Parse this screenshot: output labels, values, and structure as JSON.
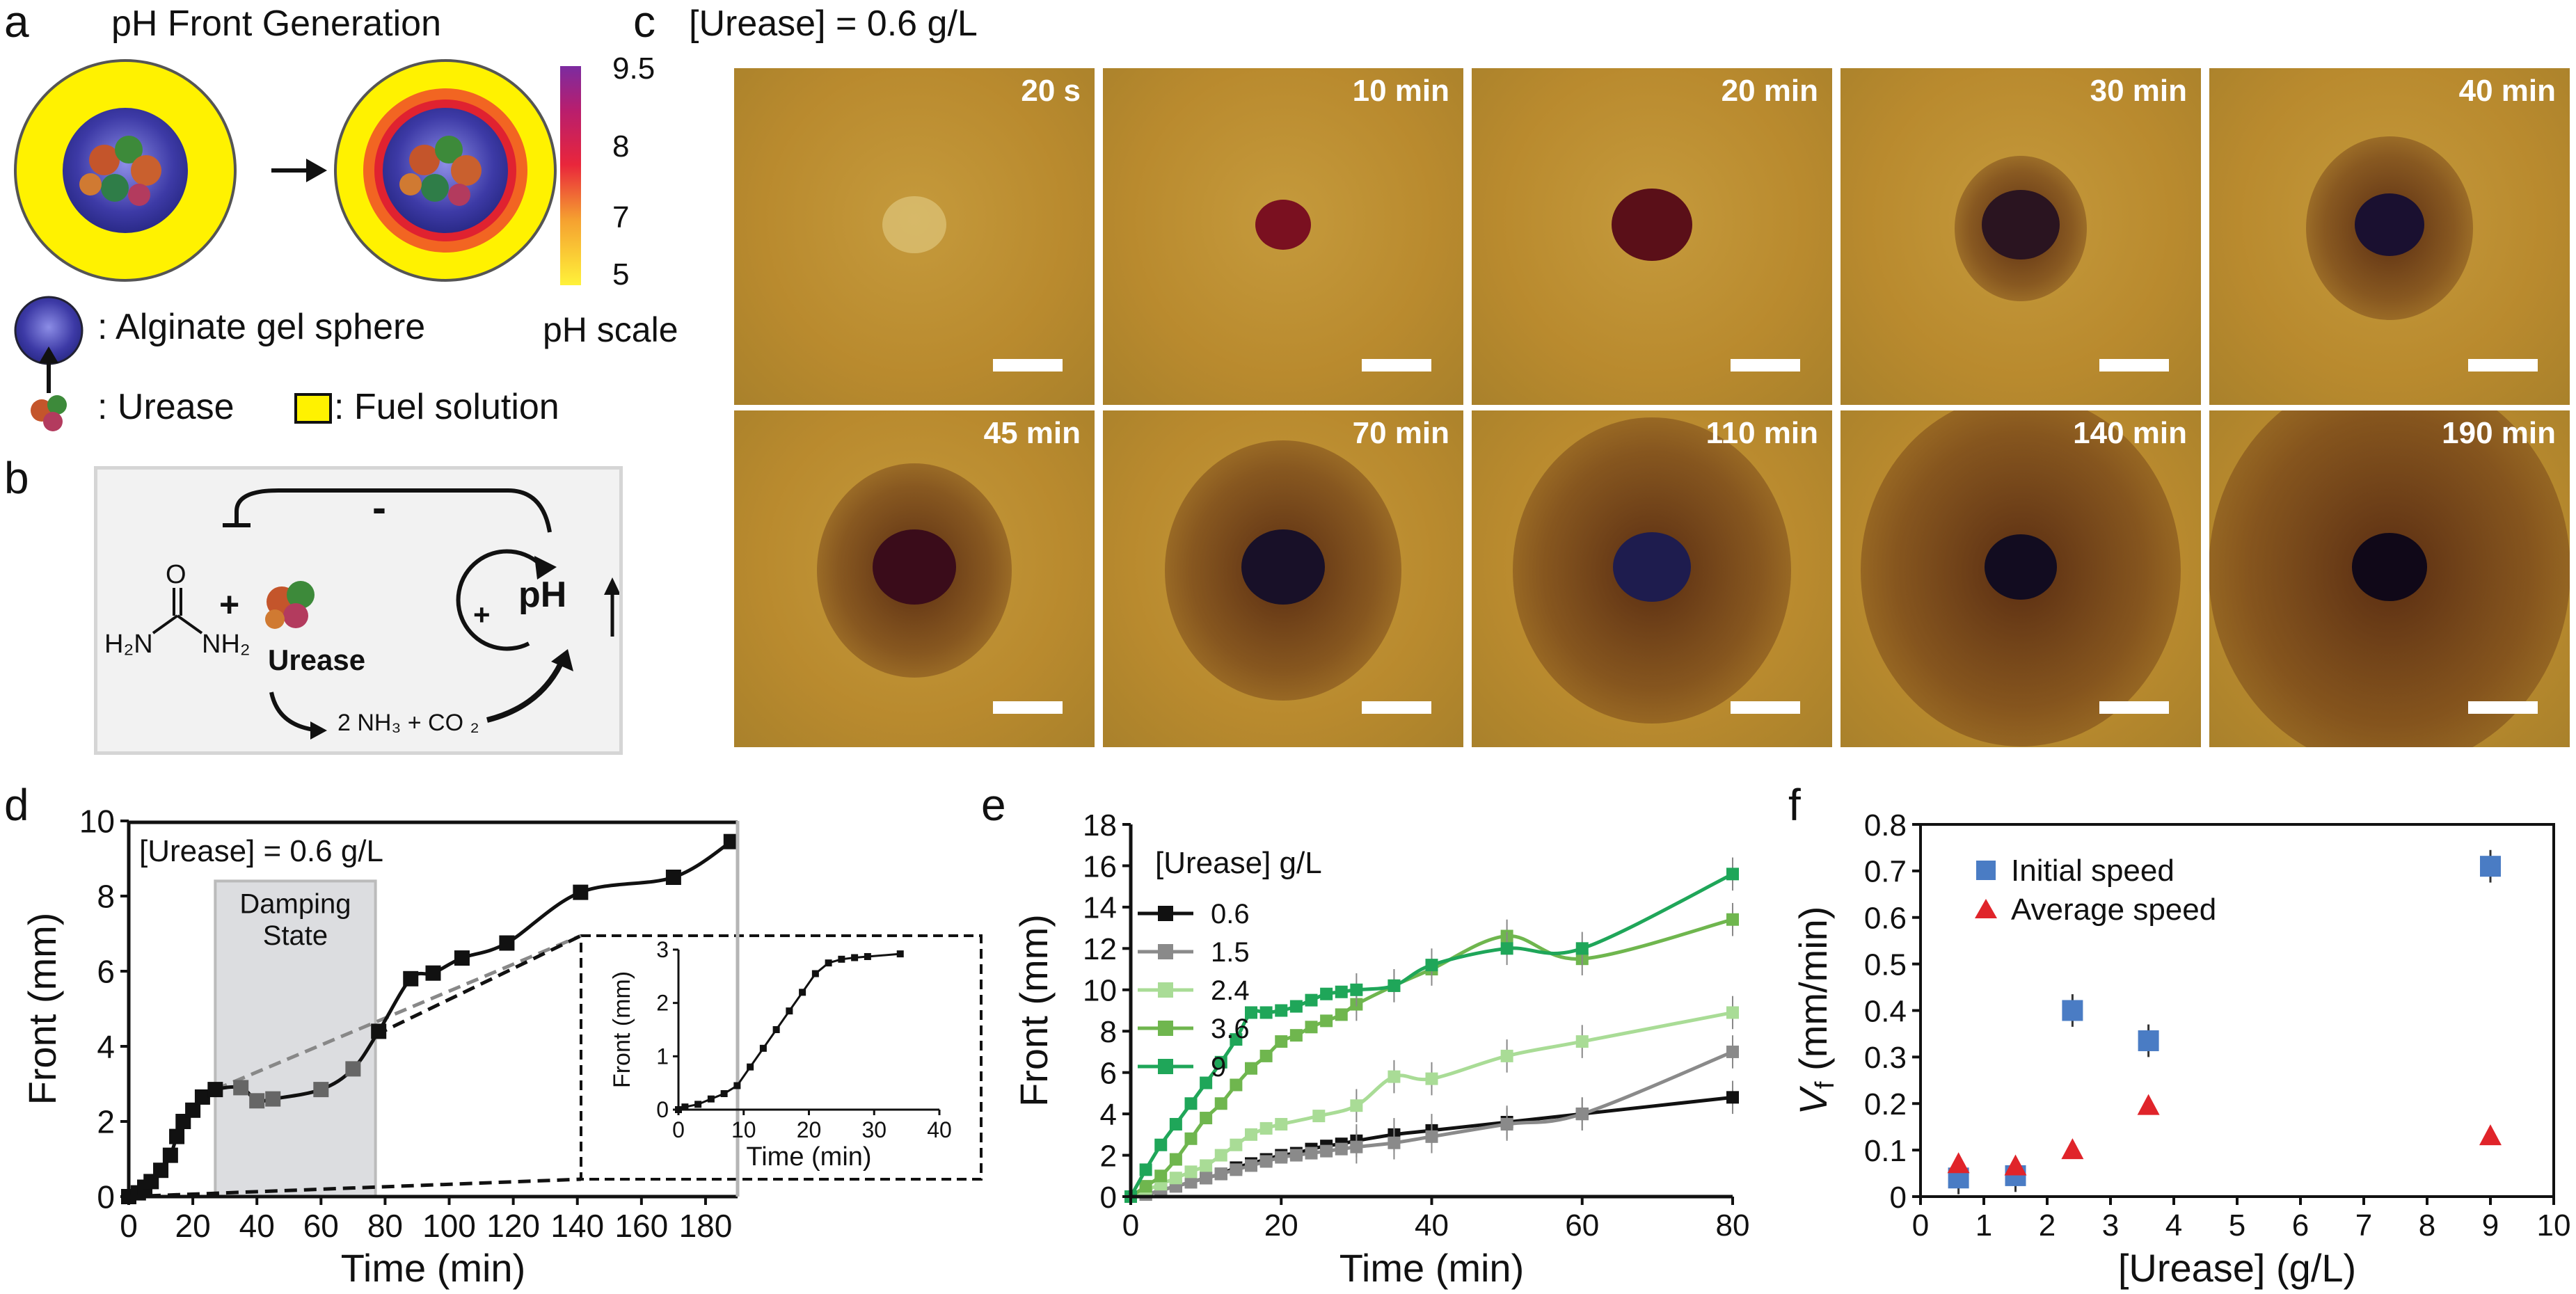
{
  "panels": {
    "a": {
      "label": "a",
      "title": "pH Front Generation",
      "ph_scale": {
        "label": "pH scale",
        "ticks": [
          "9.5",
          "8",
          "7",
          "5"
        ]
      },
      "legend": {
        "gel": ": Alginate gel sphere",
        "urease": ": Urease",
        "fuel": ": Fuel solution"
      }
    },
    "b": {
      "label": "b",
      "minus": "-",
      "plus_urea": "+",
      "plus_loop": "+",
      "ph": "pH",
      "urease": "Urease",
      "products": "2 NH₃ + CO ₂",
      "urea_o": "O",
      "urea_left": "H₂N",
      "urea_right": "NH₂"
    },
    "c": {
      "label": "c",
      "title": "[Urease] = 0.6 g/L",
      "times": [
        "20 s",
        "10 min",
        "20 min",
        "30 min",
        "40 min",
        "45 min",
        "70 min",
        "110 min",
        "140 min",
        "190 min"
      ]
    },
    "d": {
      "label": "d"
    },
    "e": {
      "label": "e"
    },
    "f": {
      "label": "f"
    }
  },
  "chart_data": [
    {
      "panel": "d",
      "type": "line",
      "title": "[Urease] = 0.6 g/L",
      "xlabel": "Time (min)",
      "ylabel": "Front (mm)",
      "xlim": [
        0,
        190
      ],
      "ylim": [
        0,
        10
      ],
      "xticks": [
        0,
        20,
        40,
        60,
        80,
        100,
        120,
        140,
        160,
        180
      ],
      "yticks": [
        0,
        2,
        4,
        6,
        8,
        10
      ],
      "annotation": [
        "Damping",
        "State"
      ],
      "shaded_region": [
        27,
        77
      ],
      "series": [
        {
          "x": [
            0,
            3,
            5,
            7,
            10,
            13,
            15,
            17,
            20,
            23,
            27,
            35,
            40,
            45,
            60,
            70,
            78,
            88,
            95,
            104,
            118,
            141,
            170,
            188
          ],
          "y": [
            0,
            0.1,
            0.25,
            0.4,
            0.7,
            1.1,
            1.6,
            2.0,
            2.3,
            2.65,
            2.85,
            2.9,
            2.55,
            2.6,
            2.85,
            3.4,
            4.4,
            5.8,
            5.95,
            6.35,
            6.75,
            8.1,
            8.5,
            9.45
          ]
        }
      ],
      "inset": {
        "xlabel": "Time (min)",
        "ylabel": "Front (mm)",
        "xlim": [
          0,
          40
        ],
        "ylim": [
          0,
          3
        ],
        "xticks": [
          0,
          10,
          20,
          30,
          40
        ],
        "yticks": [
          0,
          1,
          2,
          3
        ],
        "series": [
          {
            "x": [
              0,
              1,
              3,
              5,
              7,
              9,
              11,
              13,
              15,
              17,
              19,
              21,
              23,
              25,
              27,
              29,
              34
            ],
            "y": [
              0,
              0.05,
              0.1,
              0.2,
              0.3,
              0.45,
              0.8,
              1.15,
              1.5,
              1.85,
              2.2,
              2.55,
              2.75,
              2.82,
              2.85,
              2.87,
              2.92
            ]
          }
        ]
      }
    },
    {
      "panel": "e",
      "type": "line",
      "xlabel": "Time (min)",
      "ylabel": "Front (mm)",
      "legend_title": "[Urease] g/L",
      "xlim": [
        0,
        80
      ],
      "ylim": [
        0,
        18
      ],
      "xticks": [
        0,
        20,
        40,
        60,
        80
      ],
      "yticks": [
        0,
        2,
        4,
        6,
        8,
        10,
        12,
        14,
        16,
        18
      ],
      "series": [
        {
          "name": "0.6",
          "color": "#111111",
          "x": [
            0,
            2,
            4,
            6,
            8,
            10,
            12,
            14,
            16,
            18,
            20,
            22,
            24,
            26,
            28,
            30,
            35,
            40,
            50,
            60,
            80
          ],
          "y": [
            0,
            0.1,
            0.3,
            0.5,
            0.7,
            0.9,
            1.1,
            1.4,
            1.6,
            1.8,
            2.0,
            2.1,
            2.3,
            2.45,
            2.55,
            2.7,
            3.0,
            3.2,
            3.6,
            4.0,
            4.8
          ]
        },
        {
          "name": "1.5",
          "color": "#8a8a8a",
          "x": [
            0,
            2,
            4,
            6,
            8,
            10,
            12,
            14,
            16,
            18,
            20,
            22,
            24,
            26,
            28,
            30,
            35,
            40,
            50,
            60,
            80
          ],
          "y": [
            0,
            0.1,
            0.3,
            0.5,
            0.7,
            0.9,
            1.1,
            1.3,
            1.5,
            1.7,
            1.9,
            2.0,
            2.1,
            2.2,
            2.3,
            2.4,
            2.6,
            2.9,
            3.5,
            4.0,
            7.0
          ]
        },
        {
          "name": "2.4",
          "color": "#a9dc96",
          "x": [
            0,
            2,
            4,
            6,
            8,
            10,
            12,
            14,
            16,
            18,
            20,
            25,
            30,
            35,
            40,
            50,
            60,
            80
          ],
          "y": [
            0,
            0.3,
            0.6,
            0.9,
            1.2,
            1.5,
            2.0,
            2.5,
            3.0,
            3.3,
            3.5,
            3.9,
            4.4,
            5.8,
            5.7,
            6.8,
            7.5,
            8.9
          ]
        },
        {
          "name": "3.6",
          "color": "#6fb64e",
          "x": [
            0,
            2,
            4,
            6,
            8,
            10,
            12,
            14,
            16,
            18,
            20,
            22,
            24,
            26,
            28,
            30,
            35,
            40,
            50,
            60,
            80
          ],
          "y": [
            0,
            0.5,
            1.0,
            1.8,
            2.8,
            3.8,
            4.5,
            5.4,
            6.2,
            6.8,
            7.5,
            7.8,
            8.2,
            8.5,
            8.8,
            9.3,
            10.2,
            11.0,
            12.6,
            11.5,
            13.4
          ]
        },
        {
          "name": "9",
          "color": "#1fa659",
          "x": [
            0,
            2,
            4,
            6,
            8,
            10,
            12,
            14,
            16,
            18,
            20,
            22,
            24,
            26,
            28,
            30,
            35,
            40,
            50,
            60,
            80
          ],
          "y": [
            0,
            1.3,
            2.5,
            3.5,
            4.5,
            5.5,
            6.5,
            7.6,
            8.9,
            8.9,
            9.0,
            9.2,
            9.5,
            9.8,
            9.9,
            10.0,
            10.2,
            11.2,
            12.0,
            12.0,
            15.6
          ]
        }
      ]
    },
    {
      "panel": "f",
      "type": "scatter",
      "xlabel": "[Urease] (g/L)",
      "ylabel": "V_f (mm/min)",
      "ylabel_main": "V",
      "ylabel_sub": "f",
      "ylabel_unit": "(mm/min)",
      "xlim": [
        0,
        10
      ],
      "ylim": [
        0,
        0.8
      ],
      "xticks": [
        0,
        1,
        2,
        3,
        4,
        5,
        6,
        7,
        8,
        9,
        10
      ],
      "yticks": [
        0,
        0.1,
        0.2,
        0.3,
        0.4,
        0.5,
        0.6,
        0.7,
        0.8
      ],
      "series": [
        {
          "name": "Initial speed",
          "marker": "square",
          "color": "#4a7cc4",
          "x": [
            0.6,
            1.5,
            2.4,
            3.6,
            9
          ],
          "y": [
            0.04,
            0.045,
            0.4,
            0.335,
            0.71
          ]
        },
        {
          "name": "Average speed",
          "marker": "triangle",
          "color": "#e0242a",
          "x": [
            0.6,
            1.5,
            2.4,
            3.6,
            9
          ],
          "y": [
            0.07,
            0.065,
            0.1,
            0.195,
            0.13
          ]
        }
      ]
    }
  ]
}
